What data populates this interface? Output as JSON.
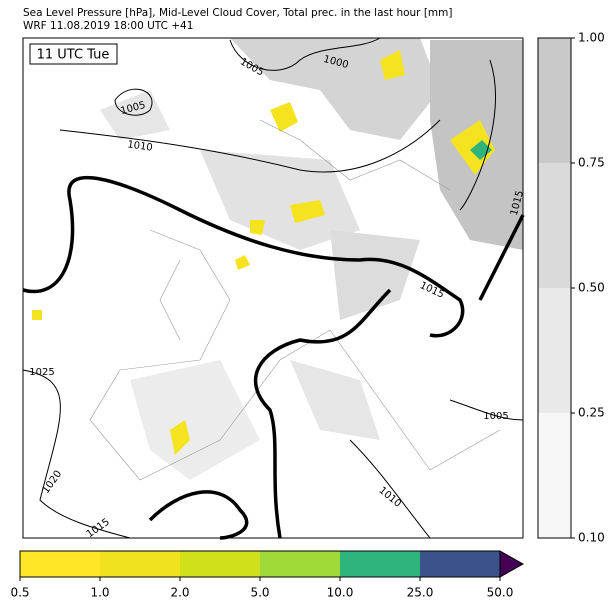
{
  "header": {
    "title": "Sea Level Pressure [hPa], Mid-Level Cloud Cover, Total prec. in the last hour [mm]",
    "subtitle": "WRF 11.08.2019 18:00 UTC +41"
  },
  "map": {
    "time_label": "11 UTC Tue",
    "contour_labels": [
      "1005",
      "1005",
      "1000",
      "1010",
      "1015",
      "1015",
      "1025",
      "1020",
      "1015",
      "1010",
      "1005"
    ]
  },
  "cloud_colorbar": {
    "ticks": [
      {
        "value": 0.1,
        "label": "0.10"
      },
      {
        "value": 0.25,
        "label": "0.25"
      },
      {
        "value": 0.5,
        "label": "0.50"
      },
      {
        "value": 0.75,
        "label": "0.75"
      },
      {
        "value": 1,
        "label": "1.00"
      }
    ],
    "colors": [
      "#f7f7f7",
      "#e9e9e9",
      "#dadada",
      "#c9c9c9"
    ]
  },
  "precip_colorbar": {
    "ticks": [
      0.5,
      {
        "value": 1,
        "label": "1.0"
      },
      {
        "value": 2,
        "label": "2.0"
      },
      {
        "value": 5,
        "label": "5.0"
      },
      {
        "value": 10,
        "label": "10.0"
      },
      {
        "value": 25,
        "label": "25.0"
      },
      {
        "value": 50,
        "label": "50.0"
      }
    ],
    "colors": [
      "#fde725",
      "#f0e31d",
      "#d0e11c",
      "#a0da39",
      "#2fb47c",
      "#3b528b"
    ],
    "extend_color": "#440154"
  }
}
